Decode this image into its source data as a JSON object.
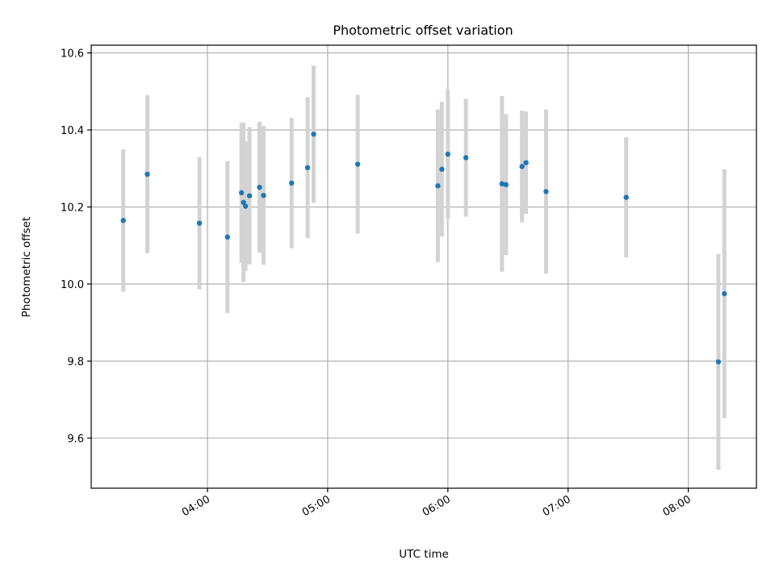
{
  "chart_data": {
    "type": "scatter",
    "title": "Photometric offset variation",
    "xlabel": "UTC time",
    "ylabel": "Photometric offset",
    "xlim": [
      "03:02",
      "08:34"
    ],
    "ylim": [
      9.47,
      10.62
    ],
    "xticks": [
      "04:00",
      "05:00",
      "06:00",
      "07:00",
      "08:00"
    ],
    "yticks": [
      9.6,
      9.8,
      10.0,
      10.2,
      10.4,
      10.6
    ],
    "ytick_labels": [
      "9.6",
      "9.8",
      "10.0",
      "10.2",
      "10.4",
      "10.6"
    ],
    "grid": true,
    "series": [
      {
        "marker": "point",
        "error_bars": true,
        "points": [
          {
            "x": "03:18",
            "y": 10.165,
            "err": 0.185
          },
          {
            "x": "03:30",
            "y": 10.285,
            "err": 0.205
          },
          {
            "x": "03:56",
            "y": 10.158,
            "err": 0.172
          },
          {
            "x": "04:10",
            "y": 10.122,
            "err": 0.197
          },
          {
            "x": "04:17",
            "y": 10.237,
            "err": 0.182
          },
          {
            "x": "04:18",
            "y": 10.212,
            "err": 0.207
          },
          {
            "x": "04:19",
            "y": 10.202,
            "err": 0.168
          },
          {
            "x": "04:21",
            "y": 10.229,
            "err": 0.178
          },
          {
            "x": "04:26",
            "y": 10.251,
            "err": 0.17
          },
          {
            "x": "04:28",
            "y": 10.23,
            "err": 0.18
          },
          {
            "x": "04:42",
            "y": 10.262,
            "err": 0.169
          },
          {
            "x": "04:50",
            "y": 10.302,
            "err": 0.183
          },
          {
            "x": "04:53",
            "y": 10.389,
            "err": 0.178
          },
          {
            "x": "05:15",
            "y": 10.311,
            "err": 0.18
          },
          {
            "x": "05:55",
            "y": 10.255,
            "err": 0.198
          },
          {
            "x": "05:57",
            "y": 10.298,
            "err": 0.175
          },
          {
            "x": "06:00",
            "y": 10.337,
            "err": 0.168
          },
          {
            "x": "06:09",
            "y": 10.328,
            "err": 0.153
          },
          {
            "x": "06:27",
            "y": 10.26,
            "err": 0.228
          },
          {
            "x": "06:29",
            "y": 10.258,
            "err": 0.183
          },
          {
            "x": "06:37",
            "y": 10.305,
            "err": 0.145
          },
          {
            "x": "06:39",
            "y": 10.315,
            "err": 0.133
          },
          {
            "x": "06:49",
            "y": 10.24,
            "err": 0.213
          },
          {
            "x": "07:29",
            "y": 10.225,
            "err": 0.156
          },
          {
            "x": "08:15",
            "y": 9.798,
            "err": 0.28
          },
          {
            "x": "08:18",
            "y": 9.975,
            "err": 0.323
          }
        ]
      }
    ],
    "colors": {
      "point": "#1f77b4",
      "errorbar": "#d3d3d3",
      "grid": "#b0b0b0"
    }
  }
}
